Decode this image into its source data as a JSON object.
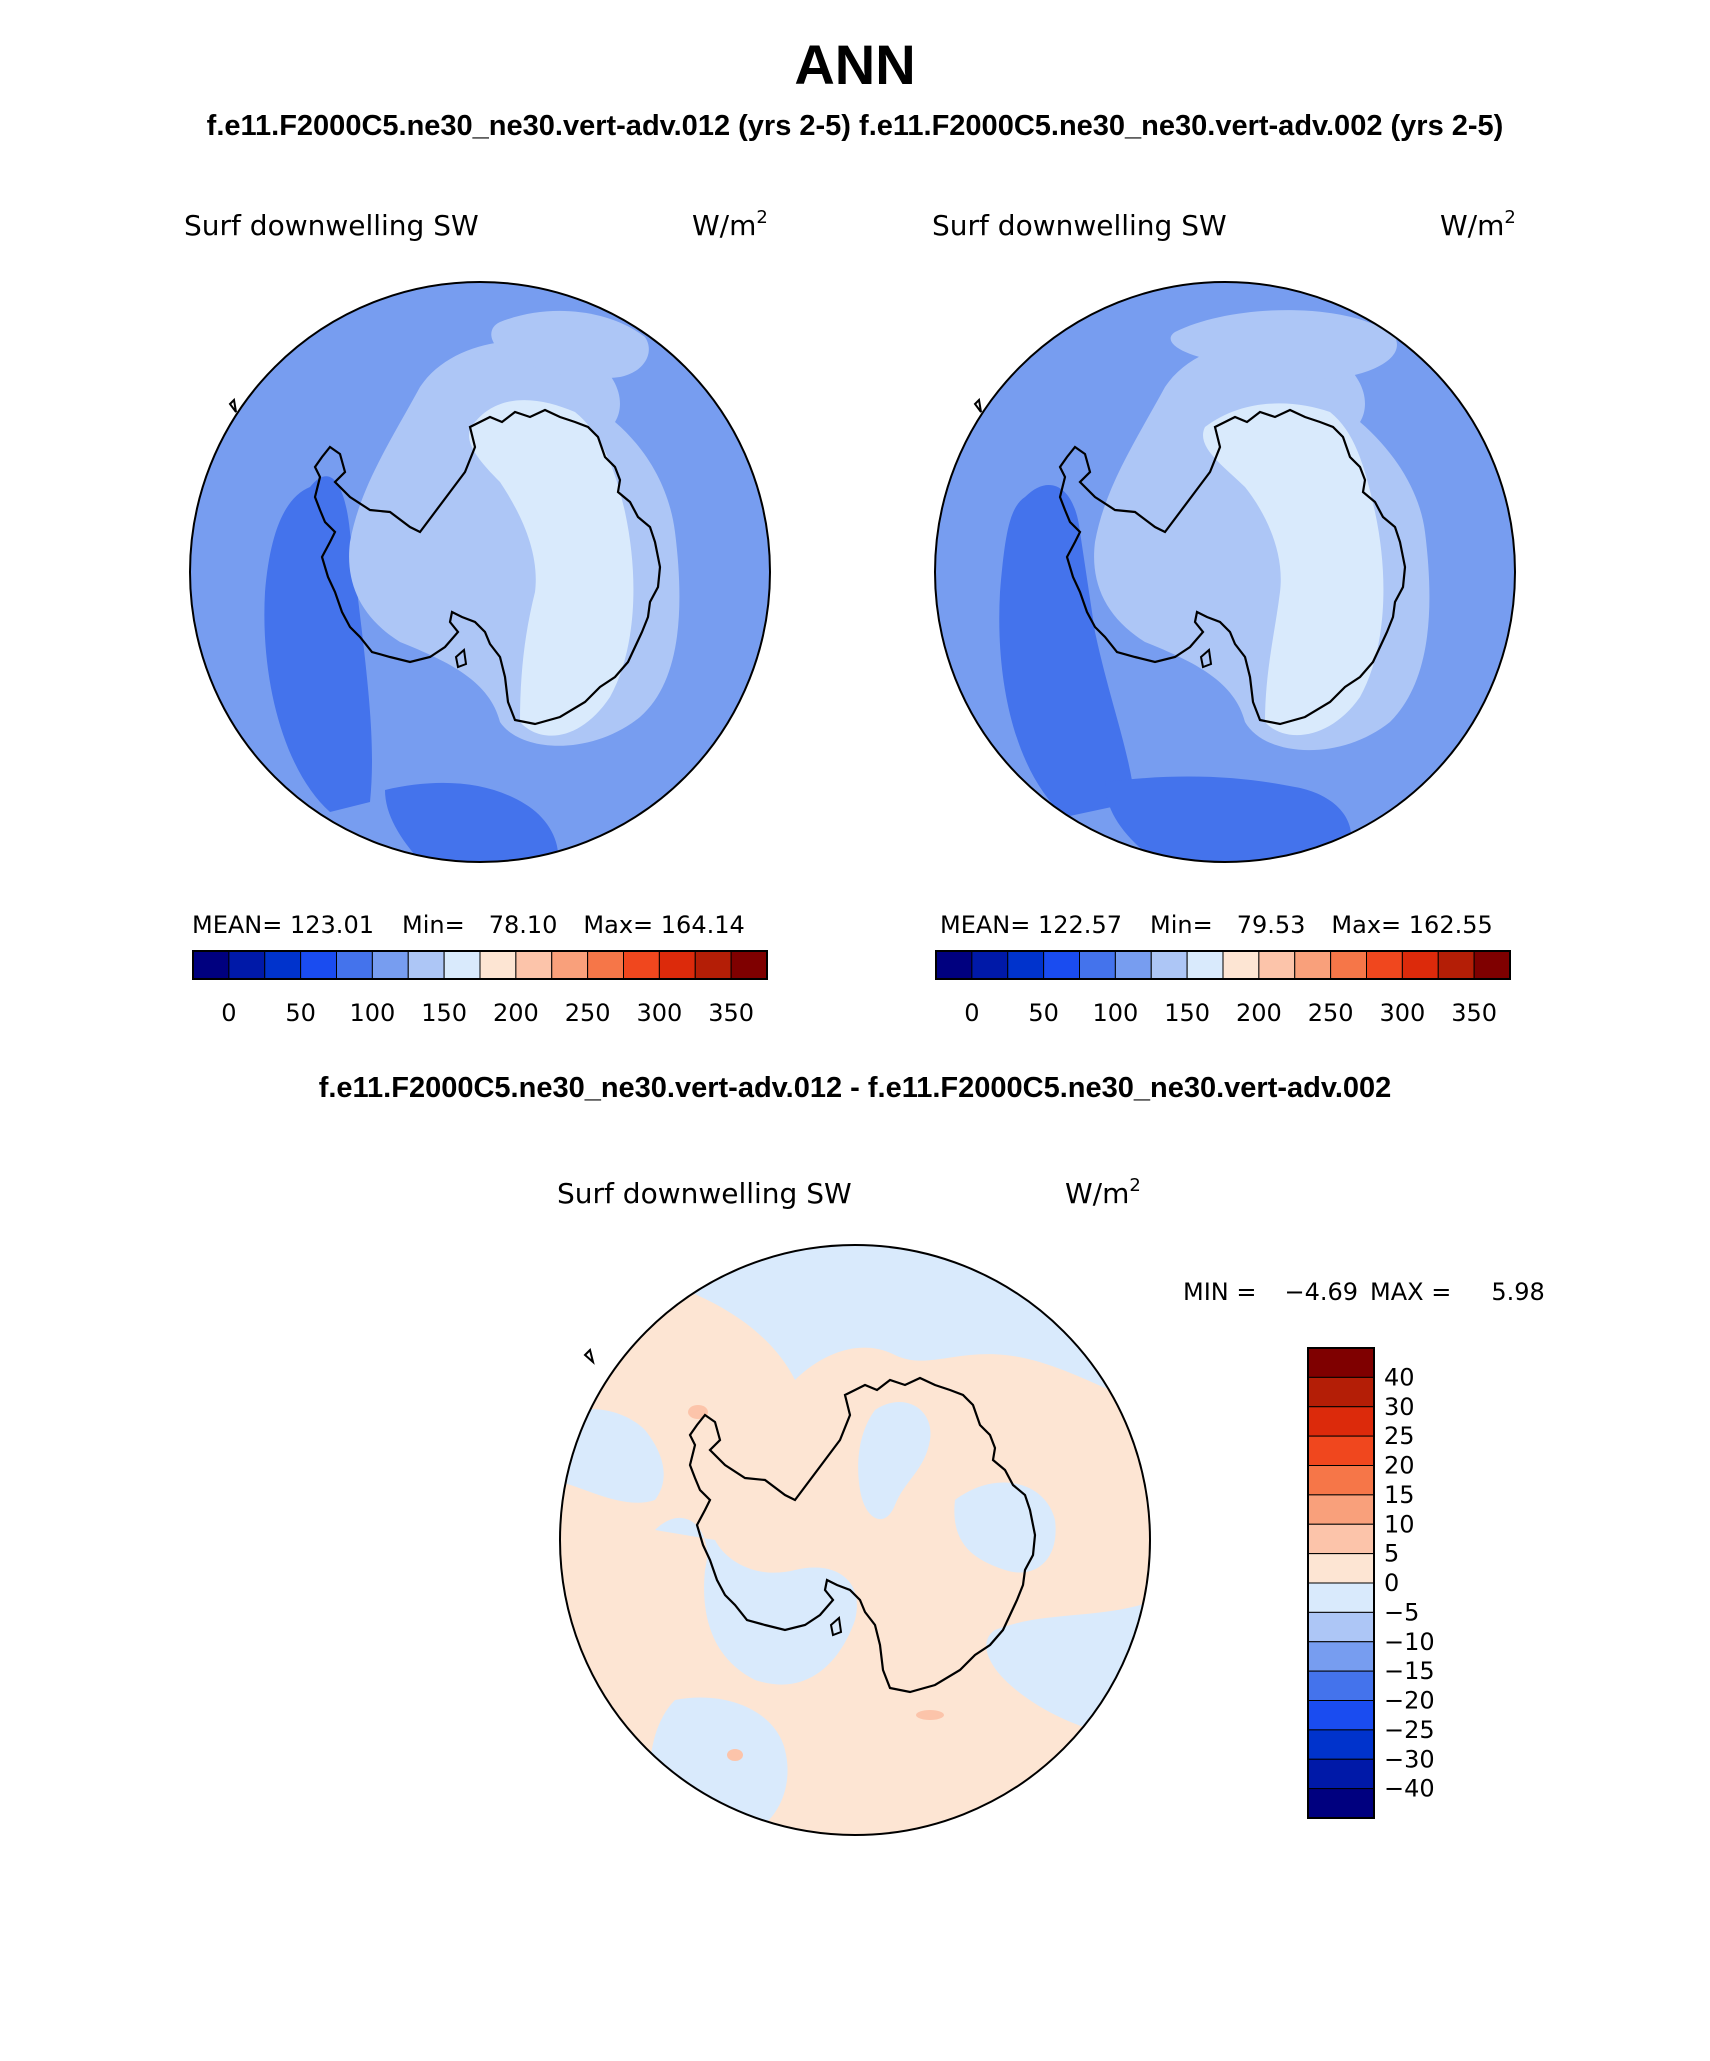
{
  "title": "ANN",
  "cases": {
    "test_label": "f.e11.F2000C5.ne30_ne30.vert-adv.012 (yrs 2-5)",
    "control_label": "f.e11.F2000C5.ne30_ne30.vert-adv.002 (yrs 2-5)"
  },
  "diff_title": "f.e11.F2000C5.ne30_ne30.vert-adv.012 - f.e11.F2000C5.ne30_ne30.vert-adv.002",
  "panels": [
    {
      "id": "test",
      "variable": "Surf downwelling SW",
      "units_base": "W/m",
      "units_exp": "2",
      "mean_label": "MEAN=",
      "mean": "123.01",
      "min_label": "Min=",
      "min": "78.10",
      "max_label": "Max=",
      "max": "164.14"
    },
    {
      "id": "control",
      "variable": "Surf downwelling SW",
      "units_base": "W/m",
      "units_exp": "2",
      "mean_label": "MEAN=",
      "mean": "122.57",
      "min_label": "Min=",
      "min": "79.53",
      "max_label": "Max=",
      "max": "162.55"
    }
  ],
  "diff_panel": {
    "variable": "Surf downwelling SW",
    "units_base": "W/m",
    "units_exp": "2",
    "min_label": "MIN =",
    "min": "−4.69",
    "max_label": "MAX =",
    "max": "5.98"
  },
  "abs_colorbar": {
    "colors": [
      "#00007f",
      "#0019a8",
      "#0033cc",
      "#1a4cf0",
      "#4473ec",
      "#779df0",
      "#adc6f6",
      "#d9eafc",
      "#fde5d3",
      "#fcc4aa",
      "#f9a07b",
      "#f67648",
      "#f0471e",
      "#dc2a0b",
      "#b41e06",
      "#7f0000"
    ],
    "ticks": [
      "0",
      "50",
      "100",
      "150",
      "200",
      "250",
      "300",
      "350"
    ]
  },
  "diff_colorbar": {
    "colors": [
      "#00007f",
      "#0019a8",
      "#0033cc",
      "#1a4cf0",
      "#4473ec",
      "#779df0",
      "#adc6f6",
      "#d9eafc",
      "#fde5d3",
      "#fcc4aa",
      "#f9a07b",
      "#f67648",
      "#f0471e",
      "#dc2a0b",
      "#b41e06",
      "#7f0000"
    ],
    "ticks": [
      "40",
      "30",
      "25",
      "20",
      "15",
      "10",
      "5",
      "0",
      "−5",
      "−10",
      "−15",
      "−20",
      "−25",
      "−30",
      "−40"
    ]
  },
  "map_colors": {
    "c70_100": "#1a4cf0",
    "c100_125": "#4473ec",
    "c125_150": "#779df0",
    "c150_175": "#adc6f6",
    "c175_200": "#d9eafc",
    "diff_pos": "#fde5d3",
    "diff_neg": "#d9eafc",
    "diff_pos2": "#fcc4aa"
  }
}
